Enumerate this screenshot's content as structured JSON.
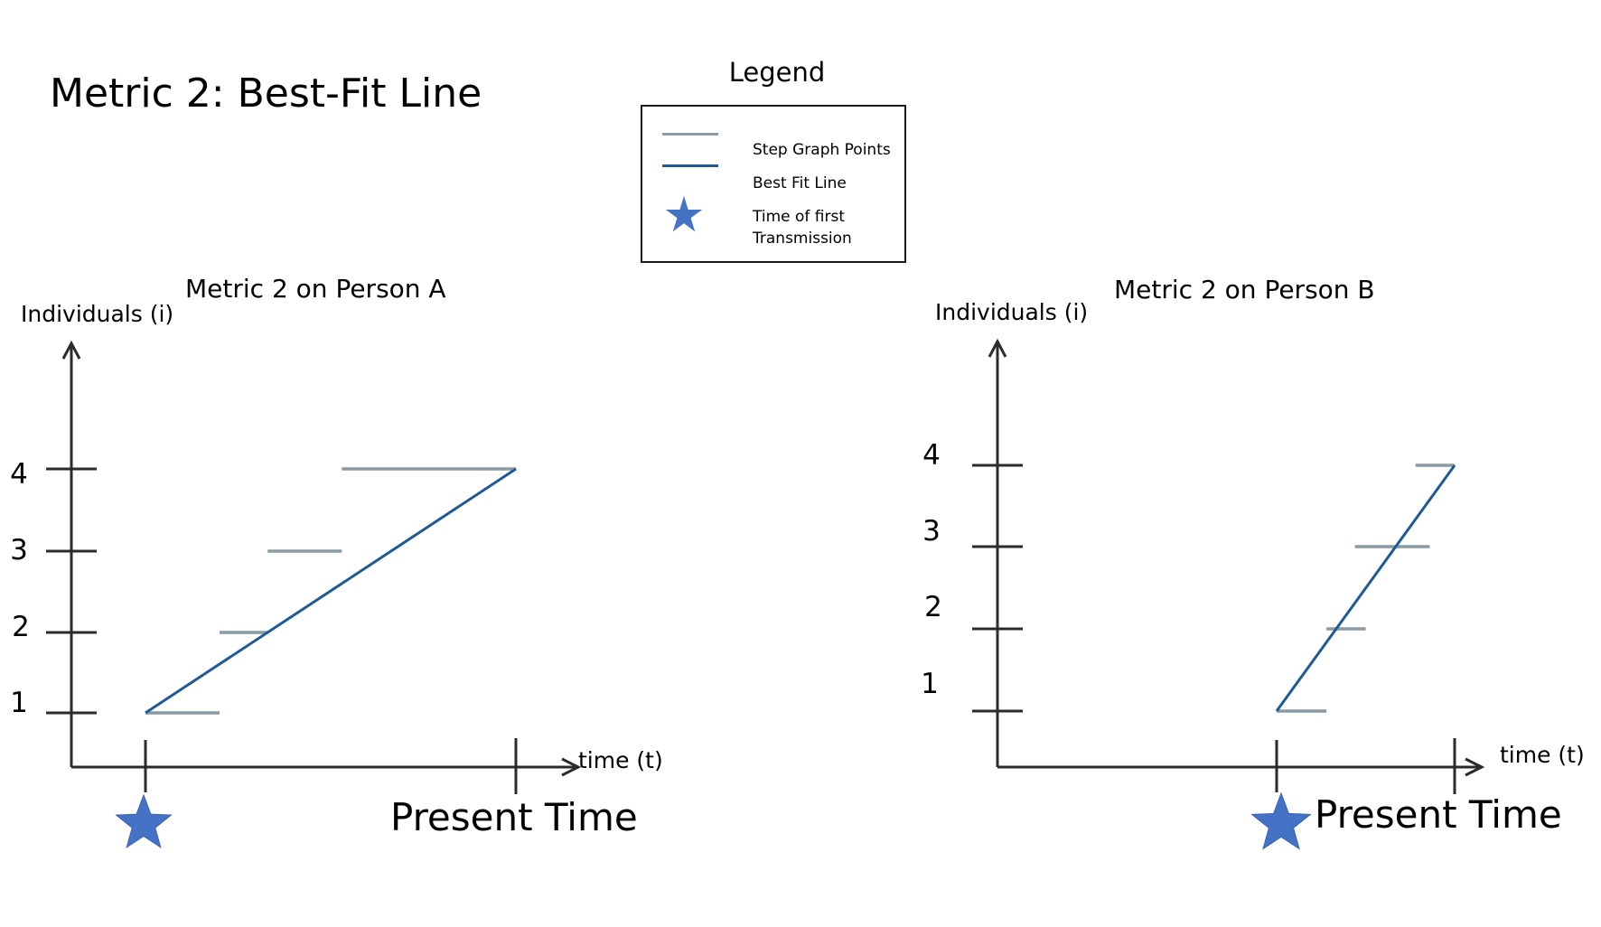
{
  "title": "Metric 2: Best-Fit Line",
  "legend": {
    "title": "Legend",
    "items": [
      {
        "label": "Step Graph Points",
        "color": "#8a9aa4",
        "kind": "line"
      },
      {
        "label": "Best Fit Line",
        "color": "#1f5a94",
        "kind": "line"
      },
      {
        "label_line1": "Time of first",
        "label_line2": "Transmission",
        "color": "#4472c4",
        "kind": "star"
      }
    ]
  },
  "chart_data": [
    {
      "type": "line",
      "title": "Metric 2 on Person A",
      "ylabel": "Individuals (i)",
      "xlabel": "time (t)",
      "yticks": [
        "1",
        "2",
        "3",
        "4"
      ],
      "present_label": "Present Time",
      "step_points": [
        {
          "y": 1,
          "x_start": 0.0,
          "x_end": 0.2
        },
        {
          "y": 2,
          "x_start": 0.2,
          "x_end": 0.33
        },
        {
          "y": 3,
          "x_start": 0.33,
          "x_end": 0.53
        },
        {
          "y": 4,
          "x_start": 0.53,
          "x_end": 1.0
        }
      ],
      "best_fit": {
        "from": {
          "x": 0.0,
          "y": 1
        },
        "to": {
          "x": 1.0,
          "y": 4
        }
      },
      "first_transmission_x": 0.0,
      "present_time_x": 1.0
    },
    {
      "type": "line",
      "title": "Metric 2 on Person B",
      "ylabel": "Individuals (i)",
      "xlabel": "time (t)",
      "yticks": [
        "1",
        "2",
        "3",
        "4"
      ],
      "present_label": "Present Time",
      "step_points": [
        {
          "y": 1,
          "x_start": 0.0,
          "x_end": 0.28
        },
        {
          "y": 2,
          "x_start": 0.28,
          "x_end": 0.5
        },
        {
          "y": 3,
          "x_start": 0.44,
          "x_end": 0.86
        },
        {
          "y": 4,
          "x_start": 0.78,
          "x_end": 1.0
        }
      ],
      "best_fit": {
        "from": {
          "x": 0.0,
          "y": 1
        },
        "to": {
          "x": 1.0,
          "y": 4
        }
      },
      "first_transmission_x": 0.0,
      "present_time_x": 1.0
    }
  ]
}
